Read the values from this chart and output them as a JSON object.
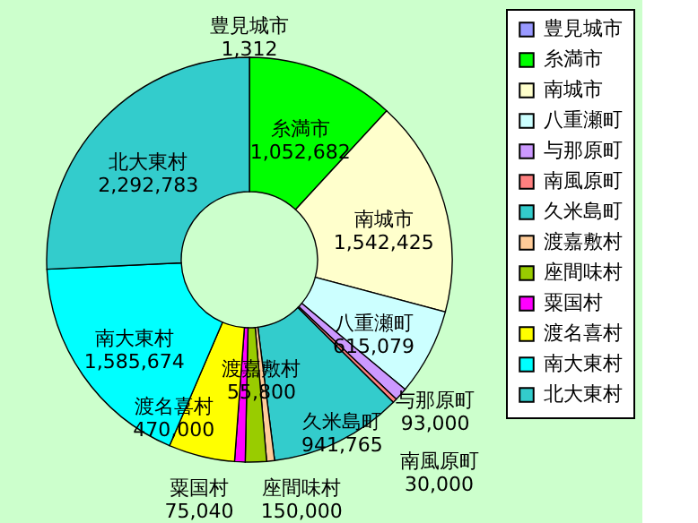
{
  "chart_data": {
    "type": "donut",
    "categories": [
      "豊見城市",
      "糸満市",
      "南城市",
      "八重瀬町",
      "与那原町",
      "南風原町",
      "久米島町",
      "渡嘉敷村",
      "座間味村",
      "粟国村",
      "渡名喜村",
      "南大東村",
      "北大東村"
    ],
    "values": [
      1312,
      1052682,
      1542425,
      615079,
      93000,
      30000,
      941765,
      55800,
      150000,
      75040,
      470000,
      1585674,
      2292783
    ],
    "value_labels": [
      "1,312",
      "1,052,682",
      "1,542,425",
      "615,079",
      "93,000",
      "30,000",
      "941,765",
      "55,800",
      "150,000",
      "75,040",
      "470,000",
      "1,585,674",
      "2,292,783"
    ],
    "colors": [
      "#9999ff",
      "#00ff00",
      "#ffffcc",
      "#ccffff",
      "#cc99ff",
      "#ff8080",
      "#33cccc",
      "#ffcc99",
      "#99cc00",
      "#ff00ff",
      "#ffff00",
      "#00ffff",
      "#33cccc"
    ],
    "legend": "right"
  }
}
